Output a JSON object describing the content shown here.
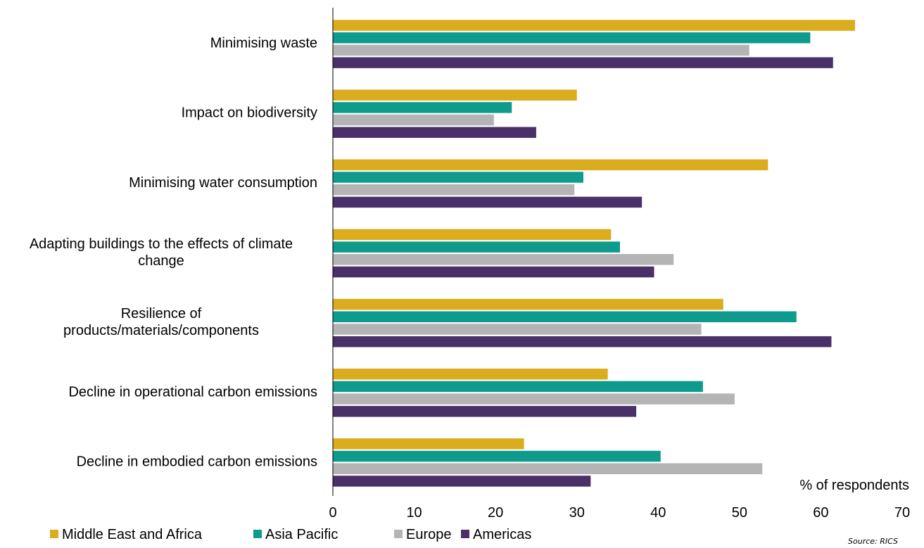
{
  "chart_data": {
    "type": "bar",
    "orientation": "horizontal",
    "categories": [
      [
        "Minimising waste"
      ],
      [
        "Impact on biodiversity"
      ],
      [
        "Minimising water consumption"
      ],
      [
        "Adapting buildings to the effects of climate",
        "change"
      ],
      [
        "Resilience of",
        "products/materials/components"
      ],
      [
        "Decline in operational carbon emissions"
      ],
      [
        "Decline in embodied carbon emissions"
      ]
    ],
    "series": [
      {
        "name": "Middle East and Africa",
        "color": "#dbac1d",
        "values": [
          64.2,
          30.0,
          53.5,
          34.2,
          48.0,
          33.8,
          23.5
        ]
      },
      {
        "name": "Asia Pacific",
        "color": "#0e9a8c",
        "values": [
          58.7,
          22.0,
          30.8,
          35.3,
          57.0,
          45.5,
          40.3
        ]
      },
      {
        "name": "Europe",
        "color": "#b4b4b4",
        "values": [
          51.2,
          19.8,
          29.7,
          41.9,
          45.3,
          49.4,
          52.8
        ]
      },
      {
        "name": "Americas",
        "color": "#4a3068",
        "values": [
          61.5,
          25.0,
          38.0,
          39.5,
          61.3,
          37.3,
          31.7
        ]
      }
    ],
    "xlim": [
      0,
      70
    ],
    "xticks": [
      "0",
      "10",
      "20",
      "30",
      "40",
      "50",
      "60",
      "70"
    ],
    "xlabel": "% of respondents",
    "source": "Source: RICS",
    "legend_position": "bottom-left"
  }
}
